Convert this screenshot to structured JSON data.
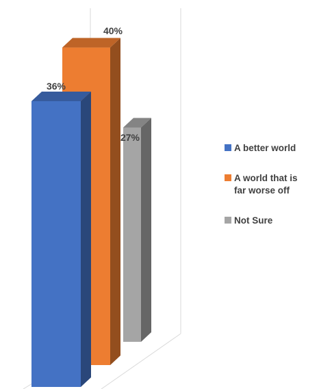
{
  "chart_data": {
    "type": "bar",
    "categories": [
      "A better world",
      "A world that is\nfar worse off",
      "Not Sure"
    ],
    "values": [
      36,
      40,
      27
    ],
    "value_suffix": "%",
    "data_labels": [
      "36%",
      "40%",
      "27%"
    ],
    "title": "",
    "xlabel": "",
    "ylabel": "",
    "ylim": [
      0,
      45
    ],
    "grid": false,
    "three_d": true,
    "legend_position": "right",
    "colors": [
      "#4472C4",
      "#ED7D31",
      "#A5A5A5"
    ]
  },
  "legend": {
    "items": [
      {
        "label": "A better world",
        "color": "#4472C4"
      },
      {
        "label": "A world that is\nfar worse off",
        "color": "#ED7D31"
      },
      {
        "label": "Not Sure",
        "color": "#A5A5A5"
      }
    ]
  }
}
